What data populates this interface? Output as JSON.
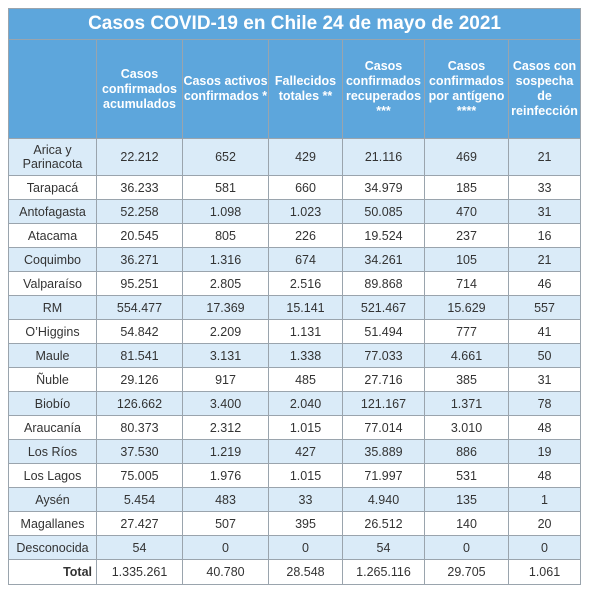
{
  "title": "Casos COVID-19 en Chile 24 de mayo de 2021",
  "headers": [
    "",
    "Casos confirmados acumulados",
    "Casos activos confirmados *",
    "Fallecidos totales **",
    "Casos confirmados recuperados ***",
    "Casos confirmados por antígeno ****",
    "Casos con sospecha de reinfección"
  ],
  "rows": [
    {
      "region": "Arica y Parinacota",
      "values": [
        "22.212",
        "652",
        "429",
        "21.116",
        "469",
        "21"
      ]
    },
    {
      "region": "Tarapacá",
      "values": [
        "36.233",
        "581",
        "660",
        "34.979",
        "185",
        "33"
      ]
    },
    {
      "region": "Antofagasta",
      "values": [
        "52.258",
        "1.098",
        "1.023",
        "50.085",
        "470",
        "31"
      ]
    },
    {
      "region": "Atacama",
      "values": [
        "20.545",
        "805",
        "226",
        "19.524",
        "237",
        "16"
      ]
    },
    {
      "region": "Coquimbo",
      "values": [
        "36.271",
        "1.316",
        "674",
        "34.261",
        "105",
        "21"
      ]
    },
    {
      "region": "Valparaíso",
      "values": [
        "95.251",
        "2.805",
        "2.516",
        "89.868",
        "714",
        "46"
      ]
    },
    {
      "region": "RM",
      "values": [
        "554.477",
        "17.369",
        "15.141",
        "521.467",
        "15.629",
        "557"
      ]
    },
    {
      "region": "O’Higgins",
      "values": [
        "54.842",
        "2.209",
        "1.131",
        "51.494",
        "777",
        "41"
      ]
    },
    {
      "region": "Maule",
      "values": [
        "81.541",
        "3.131",
        "1.338",
        "77.033",
        "4.661",
        "50"
      ]
    },
    {
      "region": "Ñuble",
      "values": [
        "29.126",
        "917",
        "485",
        "27.716",
        "385",
        "31"
      ]
    },
    {
      "region": "Biobío",
      "values": [
        "126.662",
        "3.400",
        "2.040",
        "121.167",
        "1.371",
        "78"
      ]
    },
    {
      "region": "Araucanía",
      "values": [
        "80.373",
        "2.312",
        "1.015",
        "77.014",
        "3.010",
        "48"
      ]
    },
    {
      "region": "Los Ríos",
      "values": [
        "37.530",
        "1.219",
        "427",
        "35.889",
        "886",
        "19"
      ]
    },
    {
      "region": "Los Lagos",
      "values": [
        "75.005",
        "1.976",
        "1.015",
        "71.997",
        "531",
        "48"
      ]
    },
    {
      "region": "Aysén",
      "values": [
        "5.454",
        "483",
        "33",
        "4.940",
        "135",
        "1"
      ]
    },
    {
      "region": "Magallanes",
      "values": [
        "27.427",
        "507",
        "395",
        "26.512",
        "140",
        "20"
      ]
    },
    {
      "region": "Desconocida",
      "values": [
        "54",
        "0",
        "0",
        "54",
        "0",
        "0"
      ]
    }
  ],
  "total": {
    "label": "Total",
    "values": [
      "1.335.261",
      "40.780",
      "28.548",
      "1.265.116",
      "29.705",
      "1.061"
    ]
  },
  "colors": {
    "header_bg": "#5da6dc",
    "row_shade": "#daebf8",
    "border": "#9aa4ad"
  }
}
